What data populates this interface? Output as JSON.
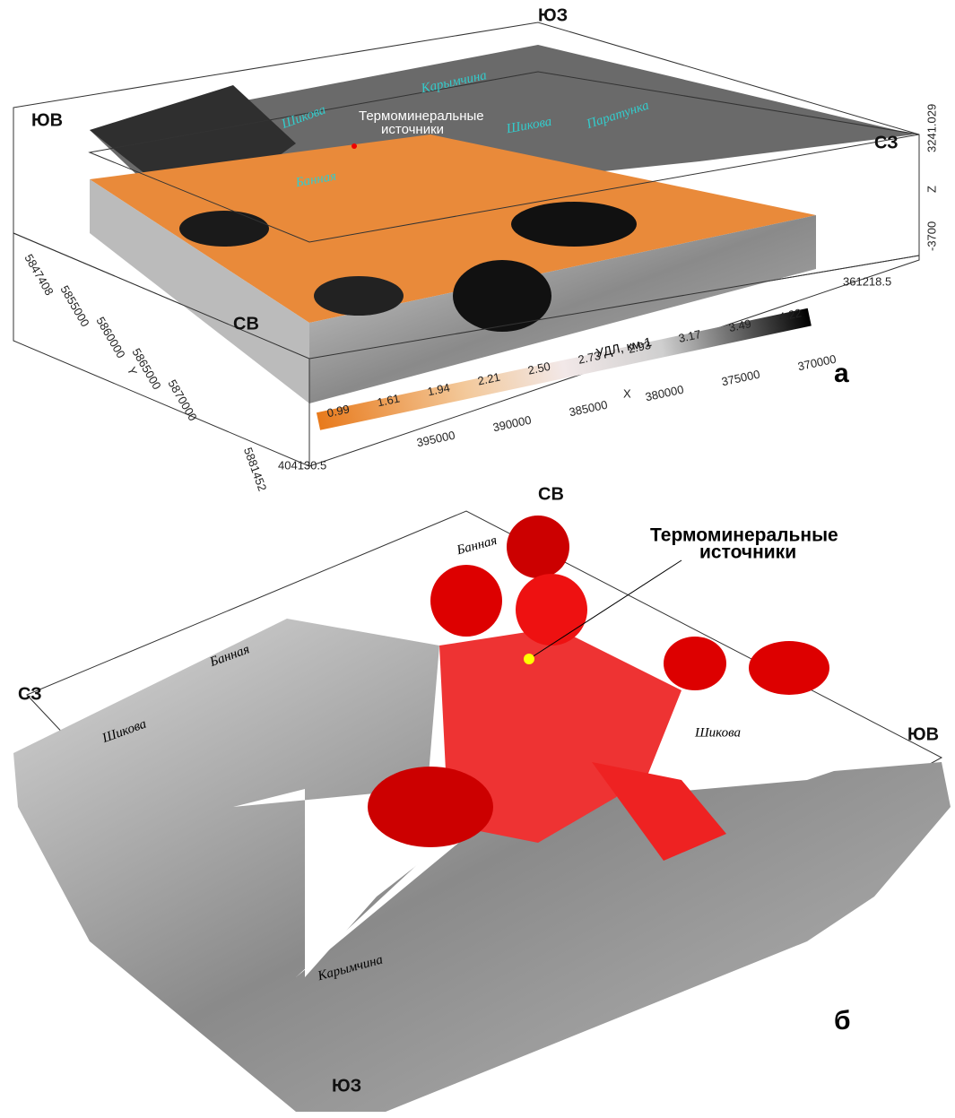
{
  "panel_a": {
    "directions": [
      "ЮЗ",
      "ЮВ",
      "СЗ",
      "СВ"
    ],
    "rivers": [
      "Карымчина",
      "Шикова",
      "Шикова",
      "Паратунка",
      "Банная"
    ],
    "springs_label": [
      "Термоминеральные",
      "источники"
    ],
    "colorbar": {
      "title": "УДЛ, км-1",
      "labels": [
        "0.99",
        "1.61",
        "1.94",
        "2.21",
        "2.50",
        "2.73",
        "2.93",
        "3.17",
        "3.49",
        "4.22"
      ]
    },
    "x_axis": {
      "label": "X",
      "ticks": [
        "395000",
        "390000",
        "385000",
        "380000",
        "375000",
        "370000"
      ],
      "min": "404130.5",
      "max": "361218.5"
    },
    "y_axis": {
      "label": "Y",
      "ticks": [
        "5847408",
        "5855000",
        "5860000",
        "5865000",
        "5870000"
      ],
      "max": "5881452"
    },
    "z_axis": {
      "label": "Z",
      "top": "3241.029",
      "bottom": "-3700"
    },
    "panel_label": "а"
  },
  "panel_b": {
    "directions": [
      "СВ",
      "СЗ",
      "ЮВ",
      "ЮЗ"
    ],
    "rivers": [
      "Банная",
      "Банная",
      "Шикова",
      "Шикова",
      "Карымчина"
    ],
    "springs_label": [
      "Термоминеральные",
      "источники"
    ],
    "panel_label": "б"
  }
}
